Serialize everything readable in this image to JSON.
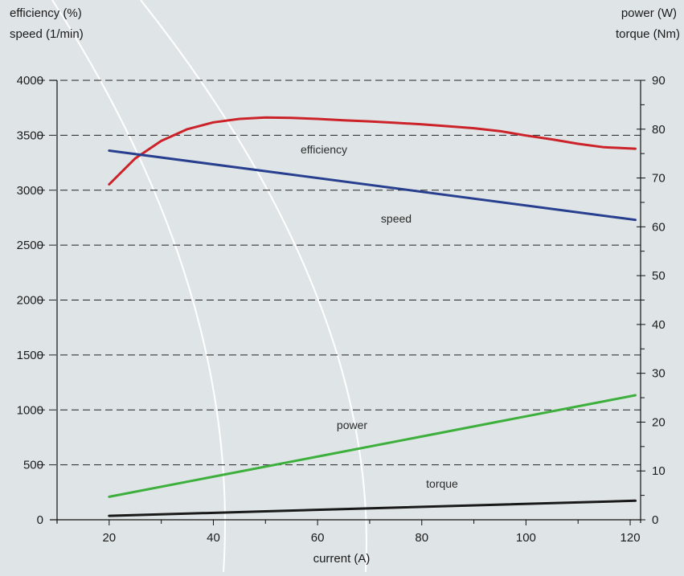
{
  "chart_data": {
    "type": "line",
    "title": "",
    "xlabel": "current (A)",
    "ylabel_left": [
      "efficiency (%)",
      "speed (1/min)"
    ],
    "ylabel_right": [
      "power (W)",
      "torque (Nm)"
    ],
    "xlim": [
      10,
      122
    ],
    "ylim_left": [
      0,
      4000
    ],
    "ylim_right": [
      0,
      90
    ],
    "x_ticks": [
      20,
      40,
      60,
      80,
      100,
      120
    ],
    "left_ticks": [
      0,
      500,
      1000,
      1500,
      2000,
      2500,
      3000,
      3500,
      4000
    ],
    "right_ticks": [
      0,
      10,
      20,
      30,
      40,
      50,
      60,
      70,
      80,
      90
    ],
    "grid": "horizontal-dashed",
    "series": [
      {
        "name": "efficiency",
        "axis": "right",
        "color": "#cc2229",
        "x": [
          20,
          25,
          30,
          35,
          40,
          45,
          50,
          55,
          60,
          65,
          70,
          75,
          80,
          85,
          90,
          95,
          100,
          105,
          110,
          115,
          121
        ],
        "y": [
          68.7,
          74.0,
          77.6,
          80.0,
          81.4,
          82.1,
          82.4,
          82.3,
          82.1,
          81.8,
          81.6,
          81.3,
          81.0,
          80.6,
          80.2,
          79.6,
          78.7,
          77.9,
          77.0,
          76.3,
          76.0
        ]
      },
      {
        "name": "speed",
        "axis": "left",
        "color": "#283f8f",
        "x": [
          20,
          121
        ],
        "y": [
          3360,
          2730
        ]
      },
      {
        "name": "power",
        "axis": "right",
        "color": "#3daf3c",
        "x": [
          20,
          121
        ],
        "y": [
          4.7,
          25.5
        ]
      },
      {
        "name": "torque",
        "axis": "right",
        "color": "#1a1a1a",
        "x": [
          20,
          121
        ],
        "y": [
          0.8,
          3.9
        ]
      }
    ]
  }
}
